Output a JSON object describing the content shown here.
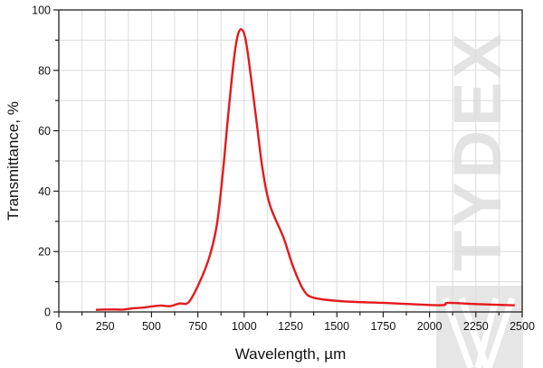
{
  "chart_data": {
    "type": "line",
    "title": "",
    "xlabel": "Wavelength, µm",
    "ylabel": "Transmittance, %",
    "xlim": [
      0,
      2500
    ],
    "ylim": [
      0,
      100
    ],
    "xticks": [
      0,
      250,
      500,
      750,
      1000,
      1250,
      1500,
      1750,
      2000,
      2250,
      2500
    ],
    "yticks": [
      0,
      20,
      40,
      60,
      80,
      100
    ],
    "grid": true,
    "series": [
      {
        "color": "#e31a1c",
        "x": [
          200,
          250,
          300,
          350,
          400,
          450,
          500,
          550,
          600,
          650,
          700,
          757,
          814,
          854,
          887,
          911,
          944,
          965,
          985,
          1005,
          1025,
          1066,
          1099,
          1139,
          1213,
          1261,
          1318,
          1375,
          1538,
          1750,
          2000,
          2080,
          2100,
          2250,
          2460
        ],
        "y": [
          0.7,
          0.8,
          0.8,
          0.8,
          1.2,
          1.4,
          1.8,
          2.1,
          1.9,
          2.8,
          3.2,
          9.5,
          18.5,
          29.4,
          47.4,
          63.4,
          83.3,
          91.5,
          93.6,
          91.0,
          83.3,
          63.4,
          47.4,
          35.4,
          24.5,
          15.5,
          7.5,
          4.7,
          3.5,
          3.0,
          2.3,
          2.3,
          3.0,
          2.6,
          2.2
        ]
      }
    ]
  },
  "watermark": "TYDEX"
}
